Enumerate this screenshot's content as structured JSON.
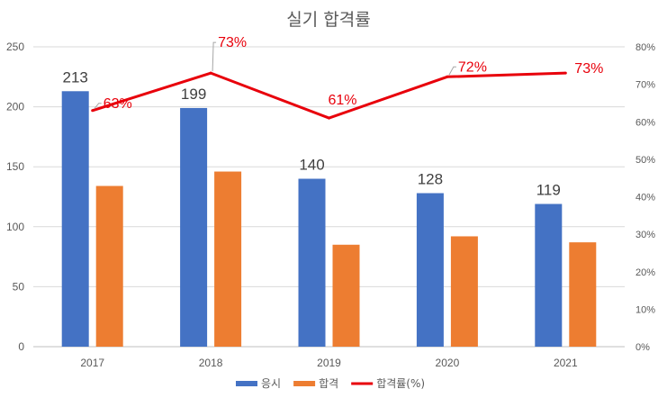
{
  "chart_data": {
    "type": "bar",
    "title": "실기 합격률",
    "categories": [
      "2017",
      "2018",
      "2019",
      "2020",
      "2021"
    ],
    "series": [
      {
        "name": "응시",
        "kind": "bar",
        "axis": "left",
        "color": "#4472C4",
        "values": [
          213,
          199,
          140,
          128,
          119
        ],
        "labels": [
          "213",
          "199",
          "140",
          "128",
          "119"
        ]
      },
      {
        "name": "합격",
        "kind": "bar",
        "axis": "left",
        "color": "#ED7D31",
        "values": [
          134,
          146,
          85,
          92,
          87
        ]
      },
      {
        "name": "합격률(%)",
        "kind": "line",
        "axis": "right",
        "color": "#E8000B",
        "values": [
          63,
          73,
          61,
          72,
          73
        ],
        "labels": [
          "63%",
          "73%",
          "61%",
          "72%",
          "73%"
        ]
      }
    ],
    "y_left": {
      "min": 0,
      "max": 250,
      "ticks": [
        "0",
        "50",
        "100",
        "150",
        "200",
        "250"
      ]
    },
    "y_right": {
      "min": 0,
      "max": 80,
      "ticks": [
        "0%",
        "10%",
        "20%",
        "30%",
        "40%",
        "50%",
        "60%",
        "70%",
        "80%"
      ]
    },
    "grid": true,
    "legend_position": "bottom"
  }
}
